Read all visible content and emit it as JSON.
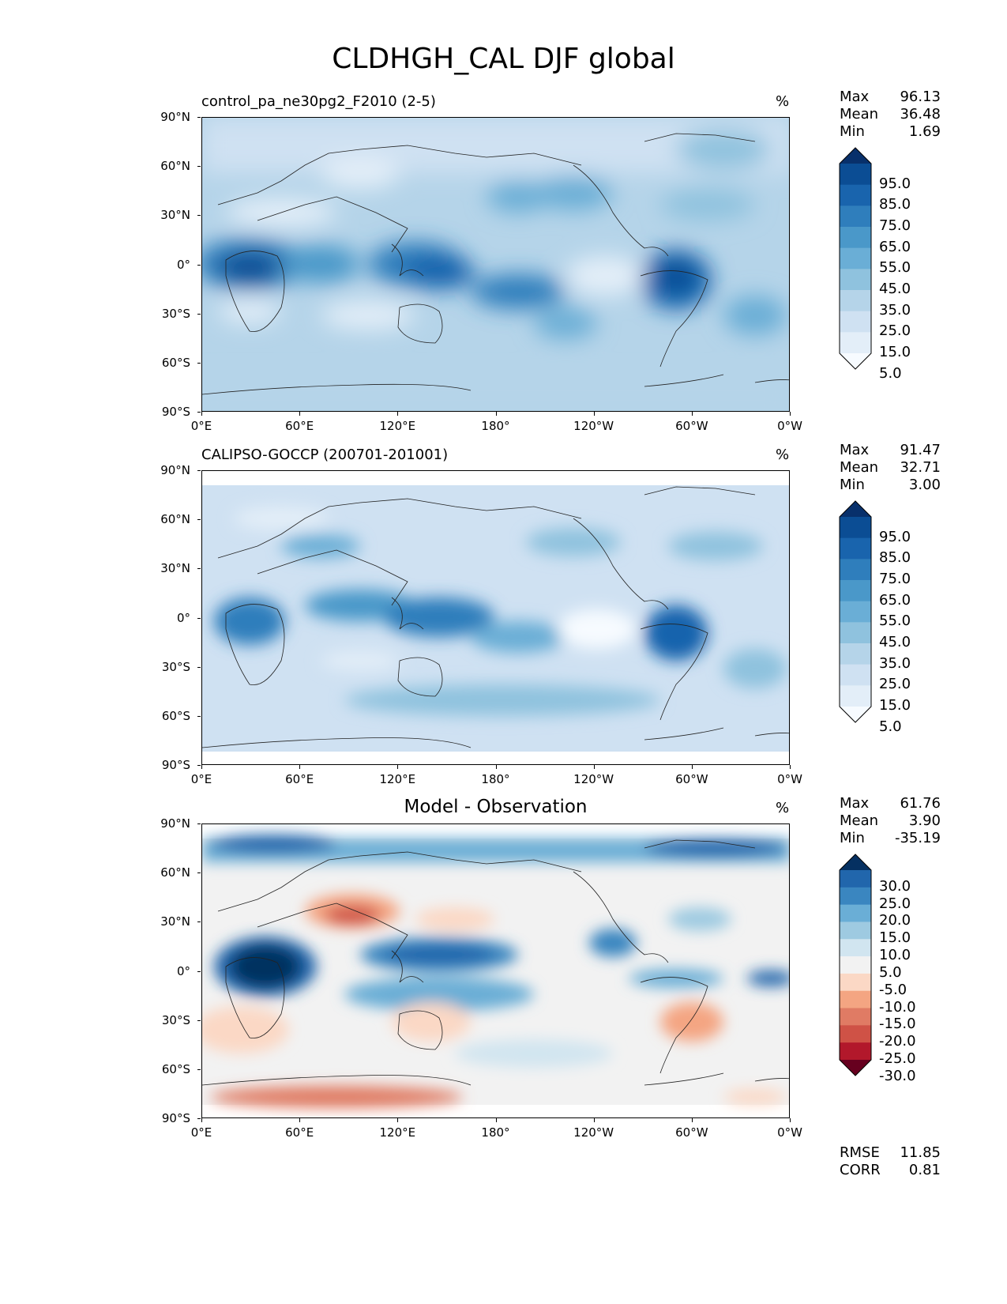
{
  "figure": {
    "title": "CLDHGH_CAL DJF global"
  },
  "axes": {
    "lat_ticks": [
      "90°N",
      "60°N",
      "30°N",
      "0°",
      "30°S",
      "60°S",
      "90°S"
    ],
    "lon_ticks": [
      "0°E",
      "60°E",
      "120°E",
      "180°",
      "120°W",
      "60°W",
      "0°W"
    ]
  },
  "panels": [
    {
      "title": "control_pa_ne30pg2_F2010 (2-5)",
      "unit": "%",
      "stats": {
        "max_label": "Max",
        "max": "96.13",
        "mean_label": "Mean",
        "mean": "36.48",
        "min_label": "Min",
        "min": "1.69"
      },
      "colorbar": {
        "levels": [
          "95.0",
          "85.0",
          "75.0",
          "65.0",
          "55.0",
          "45.0",
          "35.0",
          "25.0",
          "15.0",
          "5.0"
        ],
        "colors": [
          "#08306b",
          "#0b4d94",
          "#1964ad",
          "#2f7ebc",
          "#4a98c9",
          "#6aaed6",
          "#8fc2de",
          "#b5d4e9",
          "#cfe1f2",
          "#e3eef8",
          "#f7fbff"
        ]
      }
    },
    {
      "title": "CALIPSO-GOCCP (200701-201001)",
      "unit": "%",
      "stats": {
        "max_label": "Max",
        "max": "91.47",
        "mean_label": "Mean",
        "mean": "32.71",
        "min_label": "Min",
        "min": "3.00"
      },
      "colorbar": {
        "levels": [
          "95.0",
          "85.0",
          "75.0",
          "65.0",
          "55.0",
          "45.0",
          "35.0",
          "25.0",
          "15.0",
          "5.0"
        ],
        "colors": [
          "#08306b",
          "#0b4d94",
          "#1964ad",
          "#2f7ebc",
          "#4a98c9",
          "#6aaed6",
          "#8fc2de",
          "#b5d4e9",
          "#cfe1f2",
          "#e3eef8",
          "#f7fbff"
        ]
      }
    },
    {
      "title": "Model - Observation",
      "unit": "%",
      "stats": {
        "max_label": "Max",
        "max": "61.76",
        "mean_label": "Mean",
        "mean": "3.90",
        "min_label": "Min",
        "min": "-35.19"
      },
      "colorbar": {
        "levels": [
          "30.0",
          "25.0",
          "20.0",
          "15.0",
          "10.0",
          "5.0",
          "-5.0",
          "-10.0",
          "-15.0",
          "-20.0",
          "-25.0",
          "-30.0"
        ],
        "colors": [
          "#053061",
          "#2166ac",
          "#3a86c0",
          "#6aaed6",
          "#9ecae1",
          "#d1e5f0",
          "#f2f2f2",
          "#fbd8c5",
          "#f4a582",
          "#e07b64",
          "#cf5246",
          "#b2182b",
          "#67001f"
        ]
      },
      "extra_stats": {
        "rmse_label": "RMSE",
        "rmse": "11.85",
        "corr_label": "CORR",
        "corr": "0.81"
      }
    }
  ],
  "chart_data": [
    {
      "type": "heatmap",
      "title": "control_pa_ne30pg2_F2010 (2-5)",
      "units": "%",
      "xlim": [
        0,
        360
      ],
      "ylim": [
        -90,
        90
      ],
      "levels": [
        5,
        15,
        25,
        35,
        45,
        55,
        65,
        75,
        85,
        95
      ],
      "max": 96.13,
      "mean": 36.48,
      "min": 1.69
    },
    {
      "type": "heatmap",
      "title": "CALIPSO-GOCCP (200701-201001)",
      "units": "%",
      "xlim": [
        0,
        360
      ],
      "ylim": [
        -90,
        90
      ],
      "levels": [
        5,
        15,
        25,
        35,
        45,
        55,
        65,
        75,
        85,
        95
      ],
      "max": 91.47,
      "mean": 32.71,
      "min": 3.0
    },
    {
      "type": "heatmap",
      "title": "Model - Observation",
      "units": "%",
      "xlim": [
        0,
        360
      ],
      "ylim": [
        -90,
        90
      ],
      "levels": [
        -30,
        -25,
        -20,
        -15,
        -10,
        -5,
        5,
        10,
        15,
        20,
        25,
        30
      ],
      "max": 61.76,
      "mean": 3.9,
      "min": -35.19,
      "rmse": 11.85,
      "corr": 0.81
    }
  ]
}
